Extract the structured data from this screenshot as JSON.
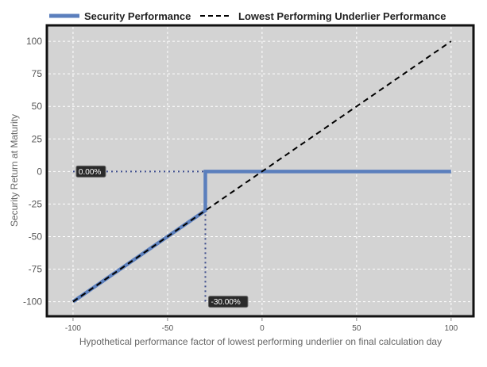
{
  "chart_data": {
    "type": "line",
    "title": "",
    "xlabel": "Hypothetical performance factor of lowest performing underlier on final calculation day",
    "ylabel": "Security Return at Maturity",
    "xlim": [
      -113,
      111
    ],
    "ylim": [
      -110,
      111
    ],
    "x_ticks": [
      -100,
      -50,
      0,
      50,
      100
    ],
    "y_ticks": [
      100,
      75,
      50,
      25,
      0,
      -25,
      -50,
      -75,
      -100
    ],
    "grid": true,
    "legend_position": "top",
    "series": [
      {
        "name": "Security Performance",
        "color": "#5b7fbd",
        "style": "solid",
        "points": [
          [
            -100,
            -100
          ],
          [
            -30,
            -30
          ],
          [
            -30,
            0
          ],
          [
            100,
            0
          ]
        ]
      },
      {
        "name": "Lowest Performing Underlier Performance",
        "color": "#000000",
        "style": "dashed",
        "points": [
          [
            -100,
            -100
          ],
          [
            100,
            100
          ]
        ]
      }
    ],
    "reference_lines": [
      {
        "from": [
          -100,
          0
        ],
        "to": [
          -30,
          0
        ],
        "color": "#3a4a8a",
        "style": "dotted"
      },
      {
        "from": [
          -30,
          0
        ],
        "to": [
          -30,
          -100
        ],
        "color": "#3a4a8a",
        "style": "dotted"
      }
    ],
    "annotations": [
      {
        "text": "0.00%",
        "x": -100,
        "y": 0
      },
      {
        "text": "-30.00%",
        "x": -30,
        "y": -100
      }
    ]
  }
}
